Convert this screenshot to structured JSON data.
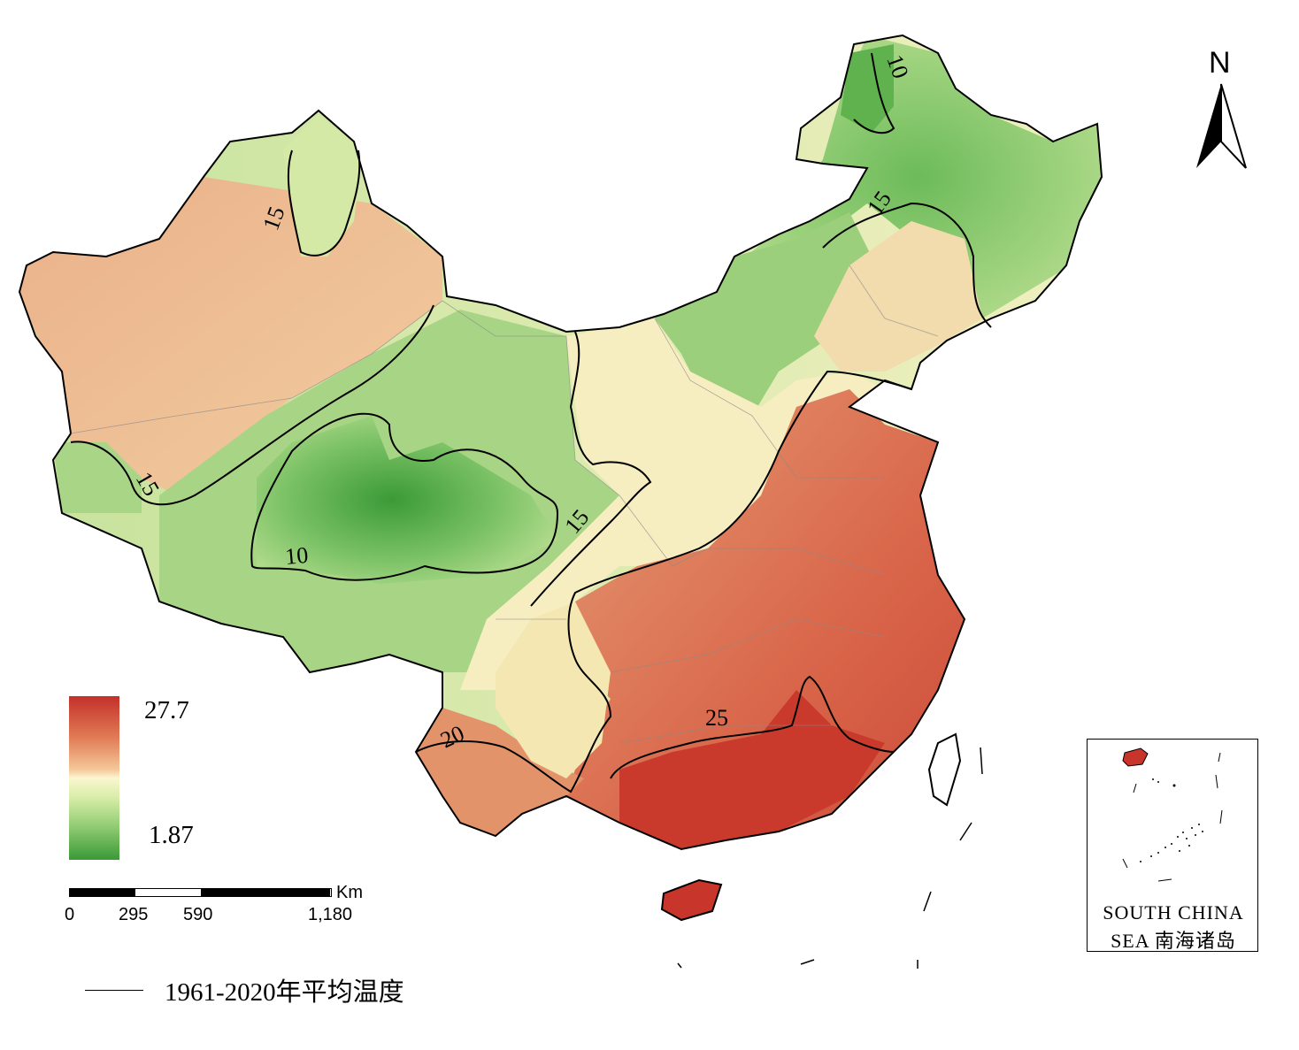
{
  "legend": {
    "max_label": "27.7",
    "min_label": "1.87",
    "colors": {
      "high": "#c4302a",
      "mid": "#fbf6d0",
      "low": "#3a9a37"
    }
  },
  "scale_bar": {
    "unit": "Km",
    "ticks": [
      "0",
      "295",
      "590",
      "1,180"
    ]
  },
  "north_arrow": {
    "label": "N"
  },
  "contour_labels": [
    "10",
    "15",
    "15",
    "15",
    "15",
    "10",
    "20",
    "25"
  ],
  "inset": {
    "line1": "SOUTH CHINA",
    "line2": "SEA 南海诸岛"
  },
  "line_legend": {
    "label": "1961-2020年平均温度"
  }
}
